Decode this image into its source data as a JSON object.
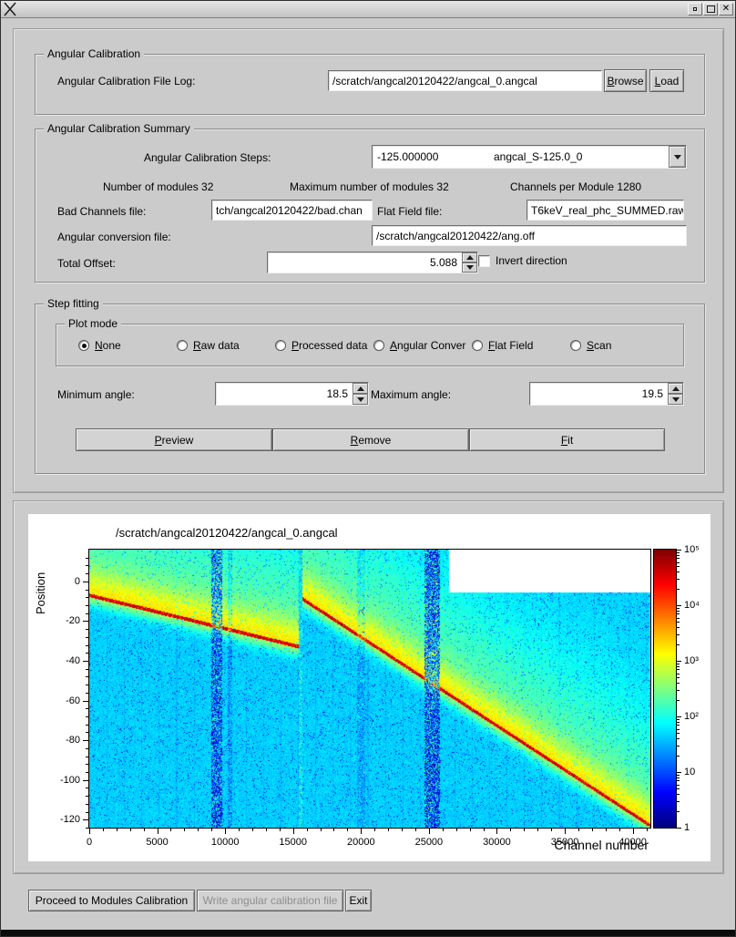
{
  "window": {
    "title": "",
    "close_glyph": "✕"
  },
  "calibration_group": {
    "title": "Angular Calibration",
    "file_log_label": "Angular Calibration File Log:",
    "file_log_value": "/scratch/angcal20120422/angcal_0.angcal",
    "browse_label": "Browse",
    "load_label": "Load"
  },
  "summary_group": {
    "title": "Angular Calibration Summary",
    "steps_label": "Angular Calibration Steps:",
    "steps_value_number": "-125.000000",
    "steps_value_name": "angcal_S-125.0_0",
    "num_modules_text": "Number of modules 32",
    "max_modules_text": "Maximum number of modules 32",
    "channels_per_module_text": "Channels per Module 1280",
    "bad_channels_label": "Bad Channels file:",
    "bad_channels_value": "tch/angcal20120422/bad.chan",
    "flat_field_label": "Flat Field file:",
    "flat_field_value": "T6keV_real_phc_SUMMED.raw",
    "ang_conv_label": "Angular conversion file:",
    "ang_conv_value": "/scratch/angcal20120422/ang.off",
    "total_offset_label": "Total Offset:",
    "total_offset_value": "5.088",
    "invert_label": "Invert direction"
  },
  "step_fitting": {
    "title": "Step fitting",
    "plot_mode": {
      "title": "Plot mode",
      "options": [
        {
          "label": "None",
          "selected": true
        },
        {
          "label": "Raw data",
          "selected": false
        },
        {
          "label": "Processed data",
          "selected": false
        },
        {
          "label": "Angular Conver",
          "selected": false
        },
        {
          "label": "Flat Field",
          "selected": false
        },
        {
          "label": "Scan",
          "selected": false
        }
      ]
    },
    "min_angle_label": "Minimum angle:",
    "min_angle_value": "18.5",
    "max_angle_label": "Maximum angle:",
    "max_angle_value": "19.5",
    "preview_label": "Preview",
    "remove_label": "Remove",
    "fit_label": "Fit"
  },
  "footer": {
    "proceed_label": "Proceed to Modules Calibration",
    "write_label": "Write angular calibration file",
    "write_enabled": false,
    "exit_label": "Exit"
  },
  "chart_data": {
    "type": "heatmap",
    "title": "/scratch/angcal20120422/angcal_0.angcal",
    "xlabel": "Channel number",
    "ylabel": "Position",
    "x_ticks": [
      0,
      5000,
      10000,
      15000,
      20000,
      25000,
      30000,
      35000,
      40000
    ],
    "y_ticks": [
      0,
      -20,
      -40,
      -60,
      -80,
      -100,
      -120
    ],
    "x_range": [
      0,
      41300
    ],
    "y_range": [
      16,
      -124
    ],
    "colorbar": {
      "scale": "log",
      "min": 1,
      "max": 100000,
      "tick_labels": [
        "1",
        "10",
        "10²",
        "10³",
        "10⁴",
        "10⁵"
      ]
    },
    "background_level": 0.33,
    "ridge_segments": [
      {
        "c0": 0,
        "p0": -7,
        "c1": 15500,
        "p1": -33
      },
      {
        "c0": 15500,
        "p0": -8,
        "c1": 41300,
        "p1": -123
      }
    ],
    "noise_bands": [
      {
        "c0": 9000,
        "c1": 9800,
        "strength": 0.5
      },
      {
        "c0": 10200,
        "c1": 10500,
        "strength": 0.2
      },
      {
        "c0": 15400,
        "c1": 15700,
        "strength": 0.25,
        "light": true
      },
      {
        "c0": 19700,
        "c1": 20300,
        "strength": 0.18
      },
      {
        "c0": 24700,
        "c1": 25800,
        "strength": 0.55
      }
    ],
    "no_data_region": {
      "c_min": 26500,
      "p_min": -5.5
    }
  }
}
